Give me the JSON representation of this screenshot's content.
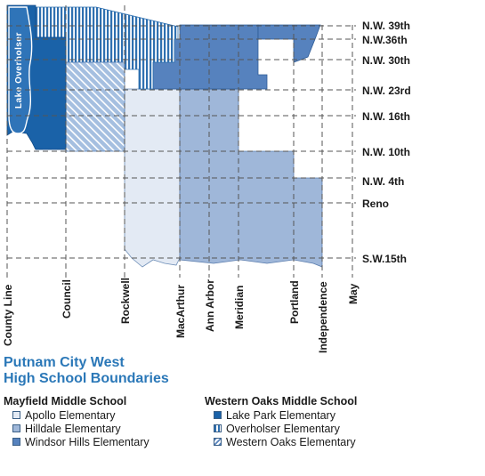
{
  "lake_label": "Lake Overholser",
  "colors": {
    "apollo": "#e3eaf4",
    "hilldale": "#9fb7d9",
    "windsor_hills": "#5682be",
    "lake_park": "#1a62a8",
    "overholser_stripe": "#2f70b0",
    "western_oaks_hatch": "#5b86be",
    "lake": "#2f74b8",
    "grid_line": "#555555"
  },
  "streets_horizontal": [
    "N.W. 39th",
    "N.W.36th",
    "N.W. 30th",
    "N.W. 23rd",
    "N.W. 16th",
    "N.W. 10th",
    "N.W. 4th",
    "Reno",
    "S.W.15th"
  ],
  "streets_vertical": [
    "County Line",
    "Council",
    "Rockwell",
    "MacArthur",
    "Ann Arbor",
    "Meridian",
    "Portland",
    "Independence",
    "May"
  ],
  "title": {
    "line1": "Putnam City West",
    "line2": "High School Boundaries"
  },
  "legend": {
    "mayfield": {
      "heading": "Mayfield Middle School",
      "items": [
        {
          "label": "Apollo Elementary",
          "pattern": "apollo"
        },
        {
          "label": "Hilldale Elementary",
          "pattern": "hilldale"
        },
        {
          "label": "Windsor Hills Elementary",
          "pattern": "windsor_hills"
        }
      ]
    },
    "western_oaks": {
      "heading": "Western Oaks Middle School",
      "items": [
        {
          "label": "Lake Park Elementary",
          "pattern": "lake_park"
        },
        {
          "label": "Overholser Elementary",
          "pattern": "overholser"
        },
        {
          "label": "Western Oaks Elementary",
          "pattern": "western_oaks"
        }
      ]
    }
  }
}
